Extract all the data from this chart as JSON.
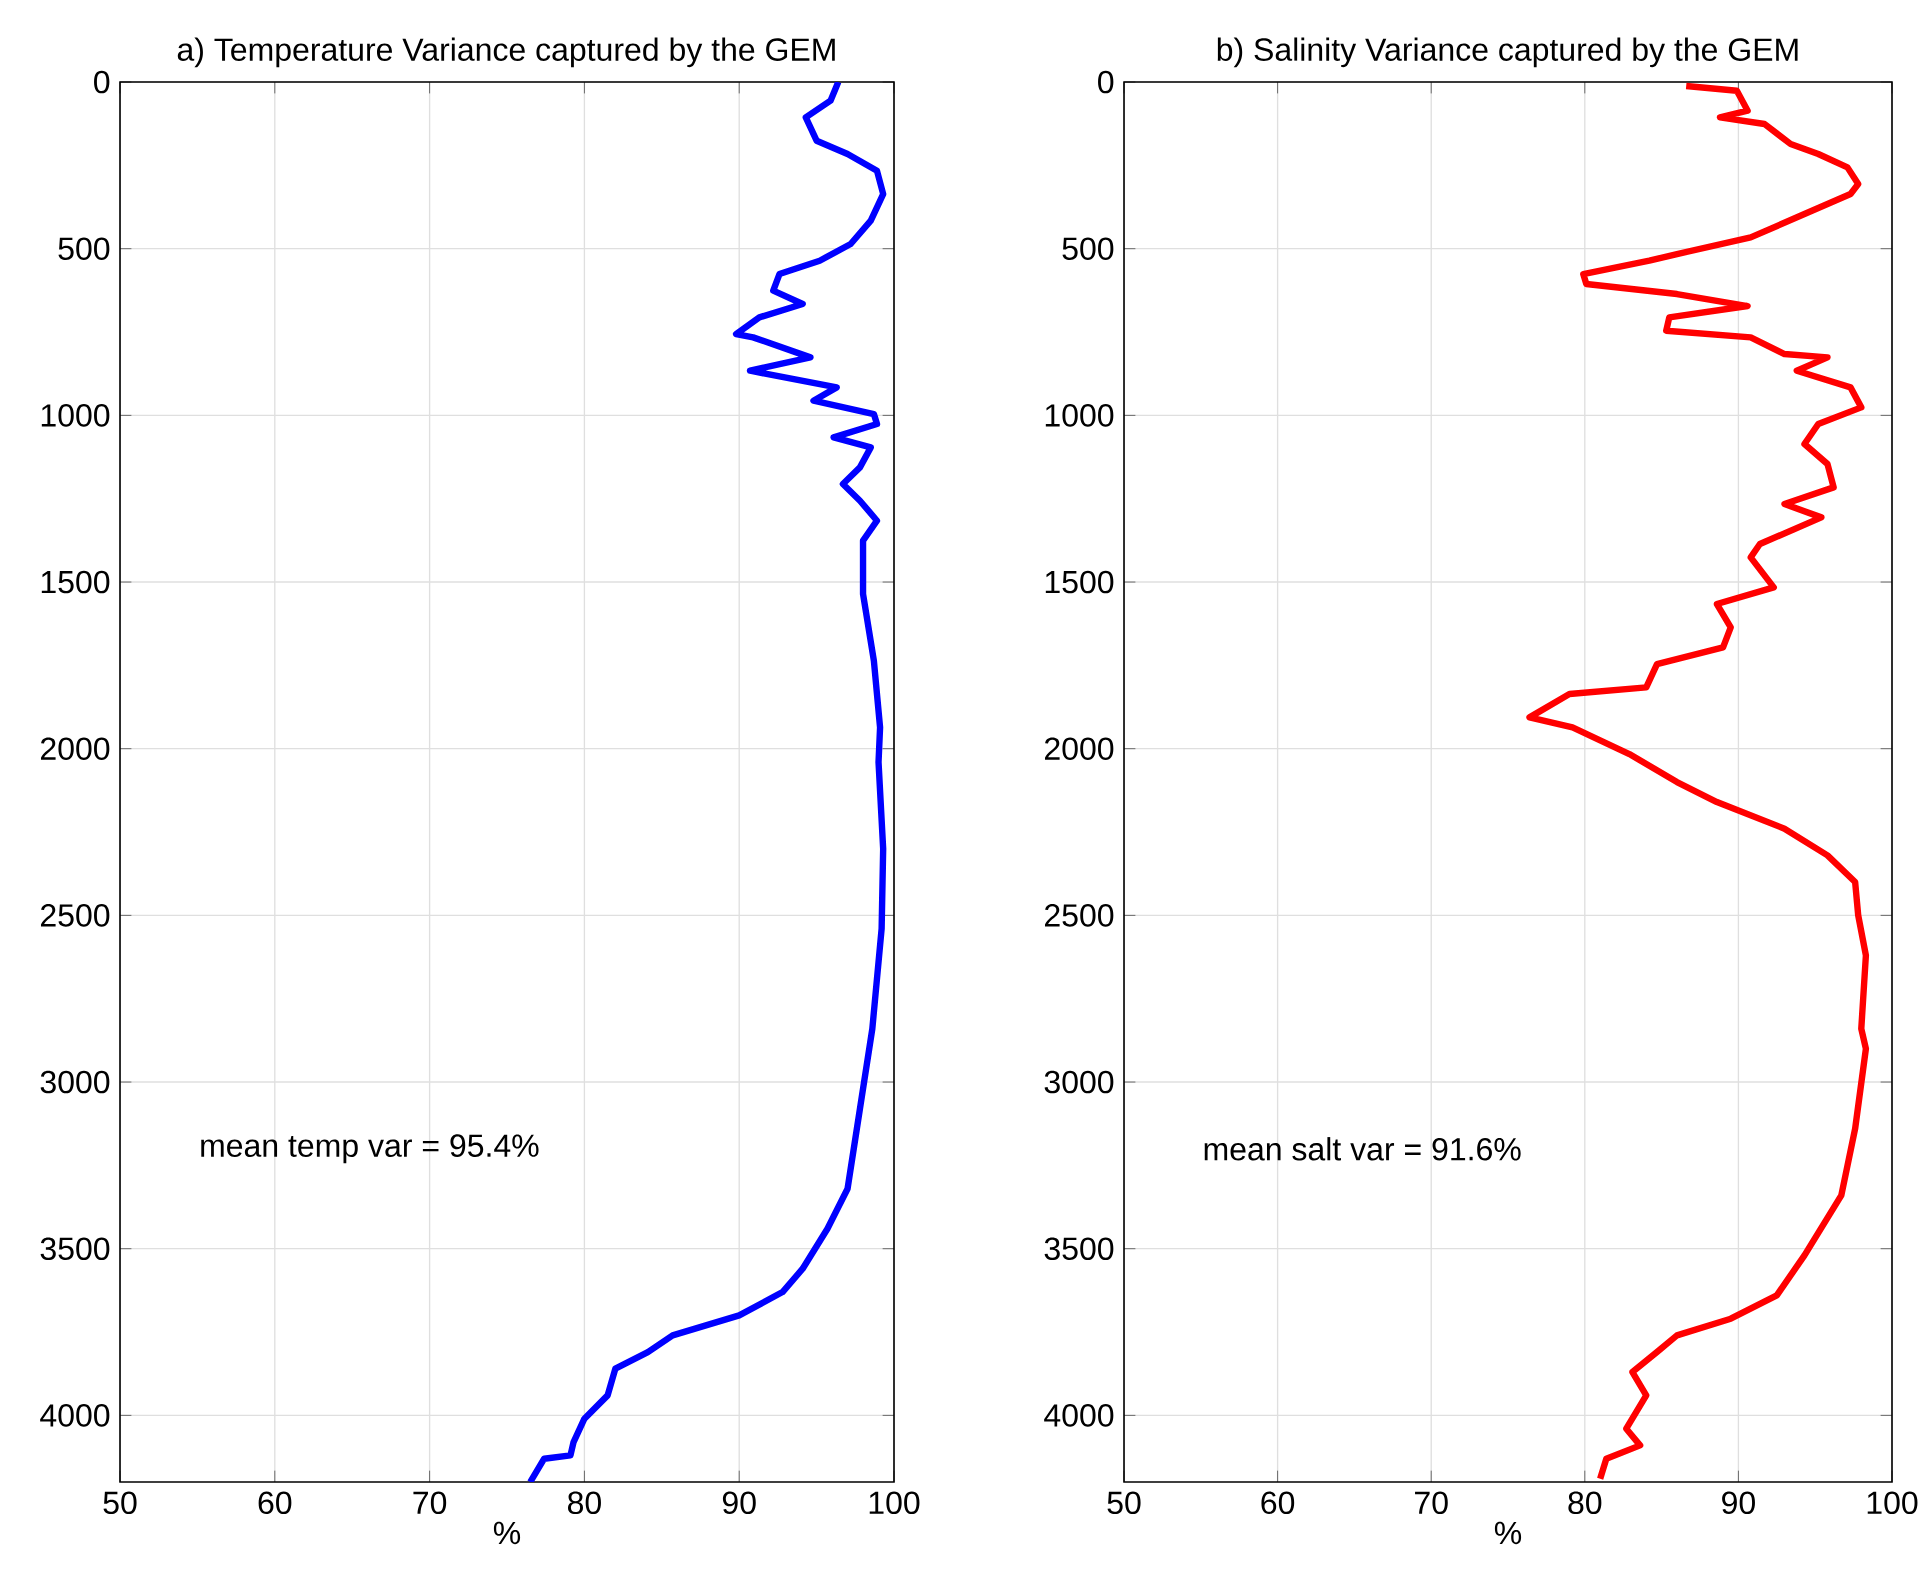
{
  "chart_data": [
    {
      "type": "line",
      "title": "a) Temperature Variance captured by the GEM",
      "xlabel": "%",
      "series": [
        {
          "color": "#0000ff",
          "x": [
            96.4,
            95.9,
            94.3,
            95.0,
            97.0,
            98.9,
            99.3,
            98.5,
            97.2,
            95.2,
            92.6,
            92.2,
            94.1,
            91.3,
            89.8,
            90.9,
            94.6,
            90.7,
            96.3,
            94.8,
            98.7,
            98.9,
            96.1,
            98.5,
            97.8,
            96.7,
            97.8,
            98.9,
            98.0,
            98.0,
            98.7,
            99.1,
            99.0,
            99.3,
            99.2,
            98.6,
            97.8,
            97.0,
            95.7,
            94.1,
            92.8,
            90.0,
            85.7,
            84.1,
            82.0,
            81.5,
            80.0,
            79.3,
            79.1,
            77.4,
            76.5
          ],
          "values": [
            0,
            56,
            106,
            176,
            216,
            266,
            336,
            416,
            486,
            536,
            576,
            626,
            666,
            706,
            756,
            766,
            826,
            866,
            916,
            956,
            996,
            1026,
            1066,
            1096,
            1156,
            1206,
            1256,
            1316,
            1376,
            1536,
            1736,
            1936,
            2040,
            2300,
            2540,
            2840,
            3080,
            3320,
            3440,
            3560,
            3630,
            3700,
            3760,
            3810,
            3860,
            3940,
            4010,
            4080,
            4120,
            4130,
            4200
          ]
        }
      ],
      "xlim": [
        50,
        100
      ],
      "xticks": [
        50,
        60,
        70,
        80,
        90,
        100
      ],
      "ylim": [
        4200,
        0
      ],
      "yticks": [
        0,
        500,
        1000,
        1500,
        2000,
        2500,
        3000,
        3500,
        4000
      ],
      "grid": true,
      "annotations": [
        "mean temp var = 95.4%"
      ]
    },
    {
      "type": "line",
      "title": "b) Salinity Variance captured by the GEM",
      "xlabel": "%",
      "series": [
        {
          "color": "#ff0000",
          "x": [
            86.6,
            89.9,
            90.6,
            88.8,
            91.7,
            93.4,
            95.2,
            97.1,
            97.8,
            97.3,
            94.3,
            90.8,
            86.0,
            84.2,
            79.9,
            80.1,
            86.0,
            90.6,
            85.5,
            85.3,
            90.8,
            93.0,
            95.8,
            93.8,
            97.3,
            98.0,
            95.2,
            94.3,
            95.8,
            96.2,
            93.0,
            95.4,
            91.4,
            90.8,
            92.3,
            88.6,
            89.5,
            89.0,
            84.7,
            84.0,
            79.0,
            76.4,
            79.2,
            82.9,
            86.0,
            88.6,
            93.0,
            95.8,
            97.6,
            97.8,
            98.3,
            98.0,
            98.3,
            97.6,
            96.7,
            94.3,
            92.5,
            89.5,
            86.0,
            84.7,
            83.1,
            84.0,
            82.7,
            83.6,
            81.4,
            81.0
          ],
          "values": [
            12,
            26,
            86,
            106,
            126,
            186,
            216,
            256,
            306,
            336,
            396,
            466,
            516,
            536,
            576,
            606,
            636,
            672,
            706,
            746,
            766,
            816,
            826,
            866,
            916,
            976,
            1026,
            1086,
            1146,
            1216,
            1266,
            1306,
            1386,
            1426,
            1516,
            1566,
            1636,
            1696,
            1746,
            1816,
            1836,
            1906,
            1936,
            2016,
            2100,
            2160,
            2240,
            2320,
            2400,
            2500,
            2620,
            2840,
            2900,
            3140,
            3340,
            3520,
            3640,
            3710,
            3760,
            3810,
            3870,
            3940,
            4040,
            4090,
            4130,
            4190
          ]
        }
      ],
      "xlim": [
        50,
        100
      ],
      "xticks": [
        50,
        60,
        70,
        80,
        90,
        100
      ],
      "ylim": [
        4200,
        0
      ],
      "yticks": [
        0,
        500,
        1000,
        1500,
        2000,
        2500,
        3000,
        3500,
        4000
      ],
      "grid": true,
      "annotations": [
        "mean salt var = 91.6%"
      ]
    }
  ]
}
